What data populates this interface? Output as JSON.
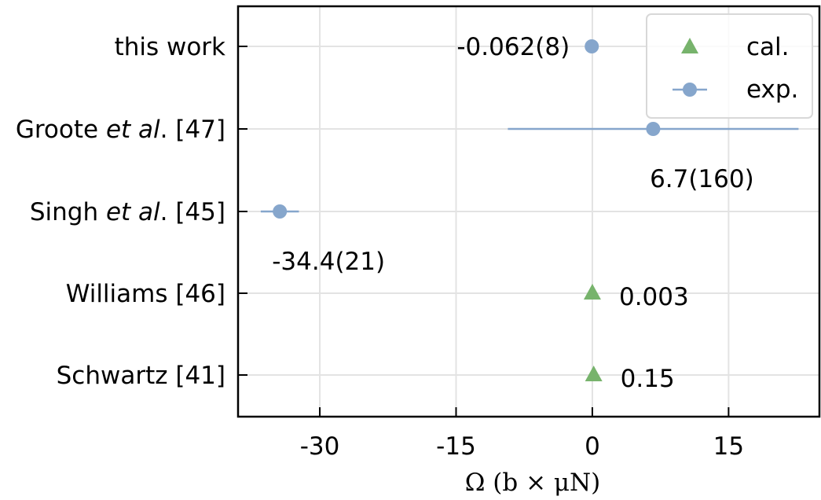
{
  "chart_data": {
    "type": "scatter",
    "xlabel": "Ω (b × μN)",
    "xlim": [
      -39,
      25
    ],
    "xticks": [
      -30,
      -15,
      0,
      15
    ],
    "grid": true,
    "legend_position": "top-right",
    "categories": [
      {
        "prefix": "this work",
        "italic": "",
        "suffix": ""
      },
      {
        "prefix": "Groote ",
        "italic": "et al",
        "suffix": ". [47]"
      },
      {
        "prefix": "Singh ",
        "italic": "et al",
        "suffix": ". [45]"
      },
      {
        "prefix": "Williams [46]",
        "italic": "",
        "suffix": ""
      },
      {
        "prefix": "Schwartz [41]",
        "italic": "",
        "suffix": ""
      }
    ],
    "series": [
      {
        "name": "cal.",
        "marker": "triangle",
        "color": "#77b36c",
        "points": [
          {
            "category": 3,
            "x": 0.003,
            "label": "0.003",
            "label_side": "right"
          },
          {
            "category": 4,
            "x": 0.15,
            "label": "0.15",
            "label_side": "right"
          }
        ]
      },
      {
        "name": "exp.",
        "marker": "circle",
        "color": "#86a6cc",
        "points": [
          {
            "category": 0,
            "x": -0.062,
            "err": 0.008,
            "label": "-0.062(8)",
            "label_side": "left"
          },
          {
            "category": 1,
            "x": 6.7,
            "err": 16.0,
            "label": "6.7(160)",
            "label_side": "below"
          },
          {
            "category": 2,
            "x": -34.4,
            "err": 2.1,
            "label": "-34.4(21)",
            "label_side": "below"
          }
        ]
      }
    ]
  }
}
